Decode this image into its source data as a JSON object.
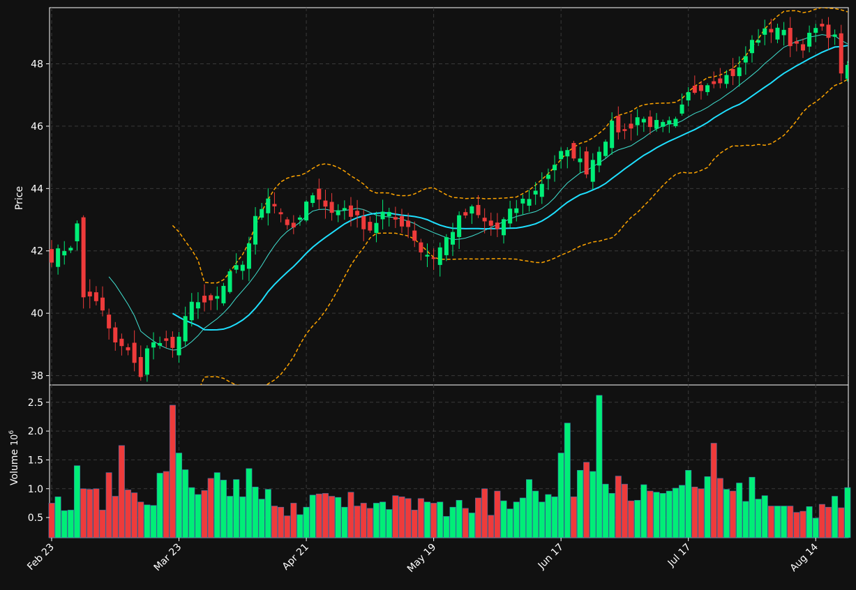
{
  "colors": {
    "background": "#111111",
    "axes": "#ffffff",
    "grid": "#3a3a3a",
    "up": "#00ee77",
    "down": "#ee3b3b",
    "sma_fast": "#40e0d0",
    "sma_slow": "#1fe0ff",
    "bollinger": "#ffa500"
  },
  "chart_data": {
    "type": "candlestick",
    "price_panel": {
      "ylabel": "Price",
      "ylim": [
        37.7,
        49.8
      ],
      "yticks": [
        38,
        40,
        42,
        44,
        46,
        48
      ],
      "grid": true,
      "overlays": [
        "SMA fast (thin, turquoise)",
        "SMA slow (thick, cyan)",
        "Bollinger upper/lower (dashed, orange)"
      ]
    },
    "volume_panel": {
      "ylabel": "Volume",
      "scale_note": "10^6",
      "ylim": [
        0.15,
        2.8
      ],
      "yticks": [
        "0.5",
        "1.0",
        "1.5",
        "2.0",
        "2.5"
      ],
      "grid": true
    },
    "x_tick_labels": [
      {
        "label": "Feb 23",
        "index": 0
      },
      {
        "label": "Mar 23",
        "index": 20
      },
      {
        "label": "Apr 21",
        "index": 40
      },
      {
        "label": "May 19",
        "index": 60
      },
      {
        "label": "Jun 17",
        "index": 80
      },
      {
        "label": "Jul 17",
        "index": 100
      },
      {
        "label": "Aug 14",
        "index": 120
      }
    ],
    "n_bars": 126,
    "close_waypoints": [
      [
        0,
        41.8
      ],
      [
        3,
        42.2
      ],
      [
        4,
        42.8
      ],
      [
        5,
        40.5
      ],
      [
        6,
        40.6
      ],
      [
        8,
        40.0
      ],
      [
        10,
        39.0
      ],
      [
        11,
        38.9
      ],
      [
        13,
        38.5
      ],
      [
        14,
        38.0
      ],
      [
        15,
        38.8
      ],
      [
        17,
        39.2
      ],
      [
        19,
        38.9
      ],
      [
        20,
        39.1
      ],
      [
        22,
        40.5
      ],
      [
        24,
        40.2
      ],
      [
        26,
        40.5
      ],
      [
        28,
        41.2
      ],
      [
        30,
        41.6
      ],
      [
        32,
        43.0
      ],
      [
        34,
        43.8
      ],
      [
        36,
        43.2
      ],
      [
        38,
        42.6
      ],
      [
        40,
        43.5
      ],
      [
        42,
        43.8
      ],
      [
        44,
        43.2
      ],
      [
        46,
        43.4
      ],
      [
        48,
        43.0
      ],
      [
        50,
        42.7
      ],
      [
        52,
        43.2
      ],
      [
        54,
        43.0
      ],
      [
        56,
        42.8
      ],
      [
        58,
        42.0
      ],
      [
        60,
        41.8
      ],
      [
        62,
        42.4
      ],
      [
        64,
        43.0
      ],
      [
        66,
        43.3
      ],
      [
        68,
        42.9
      ],
      [
        70,
        42.7
      ],
      [
        72,
        43.2
      ],
      [
        74,
        43.6
      ],
      [
        76,
        43.9
      ],
      [
        78,
        44.5
      ],
      [
        80,
        45.1
      ],
      [
        82,
        45.1
      ],
      [
        84,
        44.6
      ],
      [
        86,
        45.3
      ],
      [
        88,
        46.0
      ],
      [
        90,
        45.8
      ],
      [
        92,
        46.3
      ],
      [
        94,
        46.1
      ],
      [
        96,
        46.0
      ],
      [
        98,
        46.1
      ],
      [
        100,
        47.0
      ],
      [
        102,
        47.3
      ],
      [
        104,
        47.5
      ],
      [
        106,
        47.6
      ],
      [
        108,
        47.8
      ],
      [
        110,
        48.7
      ],
      [
        112,
        49.0
      ],
      [
        114,
        49.2
      ],
      [
        116,
        48.7
      ],
      [
        118,
        48.6
      ],
      [
        120,
        49.1
      ],
      [
        122,
        49.0
      ],
      [
        123,
        48.8
      ],
      [
        124,
        47.8
      ],
      [
        125,
        47.8
      ]
    ],
    "volume_millions": [
      0.75,
      0.86,
      0.62,
      0.63,
      1.4,
      1.0,
      0.99,
      1.0,
      0.63,
      1.28,
      0.87,
      1.75,
      0.98,
      0.93,
      0.77,
      0.72,
      0.71,
      1.27,
      1.3,
      2.45,
      1.62,
      1.33,
      1.02,
      0.9,
      0.97,
      1.18,
      1.28,
      1.15,
      0.87,
      1.16,
      0.86,
      1.35,
      1.03,
      0.82,
      0.99,
      0.7,
      0.68,
      0.53,
      0.75,
      0.55,
      0.68,
      0.89,
      0.91,
      0.92,
      0.87,
      0.85,
      0.68,
      0.94,
      0.7,
      0.75,
      0.66,
      0.75,
      0.77,
      0.64,
      0.88,
      0.86,
      0.83,
      0.63,
      0.83,
      0.77,
      0.75,
      0.77,
      0.52,
      0.68,
      0.8,
      0.66,
      0.58,
      0.84,
      1.0,
      0.54,
      0.96,
      0.79,
      0.65,
      0.77,
      0.84,
      1.16,
      0.96,
      0.77,
      0.9,
      0.86,
      1.62,
      2.14,
      0.86,
      1.32,
      1.46,
      1.3,
      2.62,
      1.08,
      0.92,
      1.22,
      1.08,
      0.79,
      0.8,
      1.07,
      0.96,
      0.94,
      0.92,
      0.96,
      1.01,
      1.06,
      1.32,
      1.03,
      1.0,
      1.21,
      1.79,
      1.18,
      0.99,
      0.96,
      1.1,
      0.78,
      1.2,
      0.82,
      0.88,
      0.7,
      0.7,
      0.7,
      0.7,
      0.59,
      0.61,
      0.69,
      0.49,
      0.73,
      0.68,
      0.87,
      0.67,
      1.02
    ]
  }
}
